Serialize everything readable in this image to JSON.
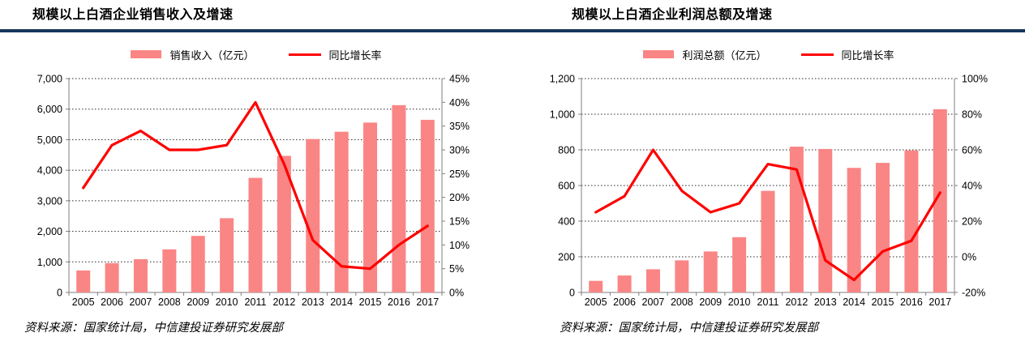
{
  "source_note": "资料来源：国家统计局，中信建投证券研究发展部",
  "colors": {
    "bar_fill": "#FA8585",
    "line_stroke": "#FF0000",
    "title_underline": "#17375D",
    "grid": "#262626",
    "axis": "#7F7F7F",
    "text": "#000000"
  },
  "chart_data": [
    {
      "type": "bar+line",
      "title": "规模以上白酒企业销售收入及增速",
      "legend_position": "top-center",
      "grid": "horizontal-dotted",
      "categories": [
        "2005",
        "2006",
        "2007",
        "2008",
        "2009",
        "2010",
        "2011",
        "2012",
        "2013",
        "2014",
        "2015",
        "2016",
        "2017"
      ],
      "series": [
        {
          "name": "销售收入（亿元）",
          "type": "bar",
          "axis": "left",
          "values": [
            720,
            960,
            1090,
            1410,
            1850,
            2430,
            3750,
            4470,
            5020,
            5260,
            5560,
            6130,
            5650
          ]
        },
        {
          "name": "同比增长率",
          "type": "line",
          "axis": "right",
          "values": [
            22,
            31,
            34,
            30,
            30,
            31,
            40,
            27,
            11,
            5.5,
            5,
            10,
            14
          ]
        }
      ],
      "left_axis": {
        "min": 0,
        "max": 7000,
        "tick_values": [
          7000,
          6000,
          5000,
          4000,
          3000,
          2000,
          1000,
          0
        ],
        "tick_labels": [
          "7,000",
          "6,000",
          "5,000",
          "4,000",
          "3,000",
          "2,000",
          "1,000",
          "0"
        ]
      },
      "right_axis": {
        "min": 0,
        "max": 45,
        "tick_values": [
          45,
          40,
          35,
          30,
          25,
          20,
          15,
          10,
          5,
          0
        ],
        "tick_labels": [
          "45%",
          "40%",
          "35%",
          "30%",
          "25%",
          "20%",
          "15%",
          "10%",
          "5%",
          "0%"
        ]
      }
    },
    {
      "type": "bar+line",
      "title": "规模以上白酒企业利润总额及增速",
      "legend_position": "top-center",
      "grid": "horizontal-dotted",
      "categories": [
        "2005",
        "2006",
        "2007",
        "2008",
        "2009",
        "2010",
        "2011",
        "2012",
        "2013",
        "2014",
        "2015",
        "2016",
        "2017"
      ],
      "series": [
        {
          "name": "利润总额（亿元）",
          "type": "bar",
          "axis": "left",
          "values": [
            65,
            95,
            130,
            180,
            230,
            310,
            570,
            818,
            805,
            699,
            727,
            797,
            1028
          ]
        },
        {
          "name": "同比增长率",
          "type": "line",
          "axis": "right",
          "values": [
            25,
            34,
            60,
            37,
            25,
            30,
            52,
            49,
            -2,
            -13,
            3,
            9,
            36
          ]
        }
      ],
      "left_axis": {
        "min": 0,
        "max": 1200,
        "tick_values": [
          1200,
          1000,
          800,
          600,
          400,
          200,
          0
        ],
        "tick_labels": [
          "1,200",
          "1,000",
          "800",
          "600",
          "400",
          "200",
          "0"
        ]
      },
      "right_axis": {
        "min": -20,
        "max": 100,
        "tick_values": [
          100,
          80,
          60,
          40,
          20,
          0,
          -20
        ],
        "tick_labels": [
          "100%",
          "80%",
          "60%",
          "40%",
          "20%",
          "0%",
          "-20%"
        ]
      }
    }
  ]
}
